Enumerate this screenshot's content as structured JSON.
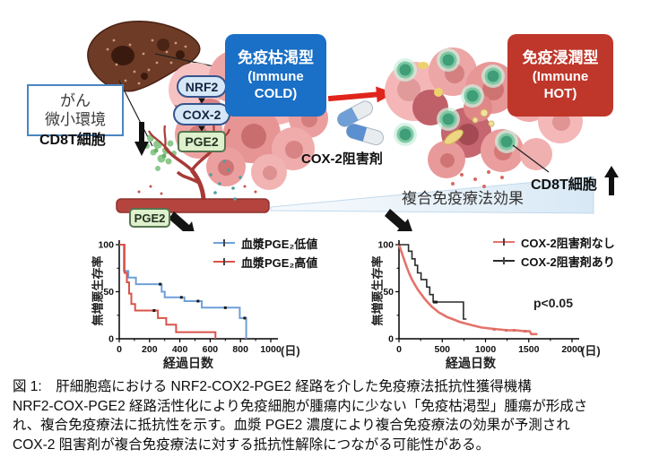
{
  "diagram": {
    "microenvironment_box": {
      "lines": [
        "がん",
        "微小環境"
      ]
    },
    "cd8_left_label": "CD8T細胞",
    "cd8_right_label": "CD8T細胞",
    "pathway_nodes": [
      {
        "label": "NRF2"
      },
      {
        "label": "COX-2"
      },
      {
        "label": "PGE2"
      }
    ],
    "vessel_pge2_label": "PGE2",
    "immune_cold_box": {
      "lines": [
        "免疫枯渇型",
        "(Immune",
        "COLD)"
      ],
      "color": "#1a6fc6"
    },
    "immune_hot_box": {
      "lines": [
        "免疫浸潤型",
        "(Immune",
        "HOT)"
      ],
      "color": "#bf372b"
    },
    "cox2_inhibitor_label": "COX-2阻害剤",
    "combo_therapy_label": "複合免疫療法効果"
  },
  "chart_data": [
    {
      "type": "line",
      "subtype": "kaplan-meier-step",
      "title": "",
      "xlabel": "経過日数",
      "x_unit": "(日)",
      "ylabel": "無増悪生存率",
      "xlim": [
        0,
        1000
      ],
      "ylim": [
        0,
        100
      ],
      "xticks": [
        0,
        200,
        400,
        600,
        800,
        1000
      ],
      "xminor": [
        100,
        300,
        500,
        700,
        900
      ],
      "yticks": [
        0,
        50,
        100
      ],
      "yminor": [
        25,
        75
      ],
      "legend_position": "top-right",
      "grid": false,
      "annotation": "",
      "series": [
        {
          "name": "血漿PGE₂低値",
          "color": "#6f9fd8",
          "width": 2,
          "marker_color": "#1a1a1a",
          "points": [
            [
              0,
              100
            ],
            [
              30,
              100
            ],
            [
              30,
              72
            ],
            [
              60,
              72
            ],
            [
              60,
              65
            ],
            [
              110,
              65
            ],
            [
              110,
              58
            ],
            [
              280,
              58
            ],
            [
              280,
              50
            ],
            [
              300,
              50
            ],
            [
              300,
              44
            ],
            [
              430,
              44
            ],
            [
              430,
              40
            ],
            [
              545,
              40
            ],
            [
              545,
              33
            ],
            [
              795,
              33
            ],
            [
              795,
              22
            ],
            [
              838,
              22
            ],
            [
              838,
              0
            ]
          ],
          "markers": [
            [
              270,
              58
            ],
            [
              410,
              44
            ],
            [
              520,
              40
            ],
            [
              700,
              33
            ],
            [
              828,
              22
            ]
          ]
        },
        {
          "name": "血漿PGE₂高値",
          "color": "#d9534a",
          "width": 2,
          "marker_color": "#1a1a1a",
          "points": [
            [
              0,
              100
            ],
            [
              35,
              100
            ],
            [
              35,
              70
            ],
            [
              50,
              70
            ],
            [
              50,
              60
            ],
            [
              65,
              60
            ],
            [
              65,
              48
            ],
            [
              80,
              48
            ],
            [
              80,
              37
            ],
            [
              105,
              37
            ],
            [
              105,
              30
            ],
            [
              255,
              30
            ],
            [
              255,
              22
            ],
            [
              310,
              22
            ],
            [
              310,
              15
            ],
            [
              375,
              15
            ],
            [
              375,
              7
            ],
            [
              635,
              7
            ],
            [
              635,
              0
            ]
          ],
          "markers": [
            [
              230,
              30
            ]
          ]
        }
      ]
    },
    {
      "type": "line",
      "subtype": "kaplan-meier-step",
      "title": "",
      "xlabel": "経過日数",
      "x_unit": "(日)",
      "ylabel": "無増悪生存率",
      "xlim": [
        0,
        2000
      ],
      "ylim": [
        0,
        100
      ],
      "xticks": [
        0,
        500,
        1000,
        1500,
        2000
      ],
      "xminor": [
        250,
        750,
        1250,
        1750
      ],
      "yticks": [
        0,
        50,
        100
      ],
      "yminor": [
        25,
        75
      ],
      "legend_position": "top-right",
      "grid": false,
      "annotation": "p<0.05",
      "series": [
        {
          "name": "COX-2阻害剤なし",
          "color": "#e4736b",
          "width": 2.6,
          "marker_color": "#d96b63",
          "points": [
            [
              0,
              100
            ],
            [
              30,
              92
            ],
            [
              60,
              84
            ],
            [
              90,
              76
            ],
            [
              120,
              69
            ],
            [
              150,
              63
            ],
            [
              180,
              58
            ],
            [
              220,
              52
            ],
            [
              260,
              47
            ],
            [
              300,
              42
            ],
            [
              340,
              38
            ],
            [
              380,
              34
            ],
            [
              420,
              31
            ],
            [
              460,
              28
            ],
            [
              500,
              26
            ],
            [
              560,
              23
            ],
            [
              620,
              21
            ],
            [
              700,
              18
            ],
            [
              780,
              16
            ],
            [
              860,
              14
            ],
            [
              950,
              12
            ],
            [
              1050,
              11
            ],
            [
              1150,
              10
            ],
            [
              1250,
              9
            ],
            [
              1350,
              9
            ],
            [
              1450,
              8
            ],
            [
              1510,
              8
            ],
            [
              1530,
              5
            ],
            [
              1600,
              5
            ]
          ],
          "markers": [
            [
              1100,
              10
            ],
            [
              1240,
              9
            ],
            [
              1330,
              9
            ],
            [
              1460,
              8
            ]
          ]
        },
        {
          "name": "COX-2阻害剤あり",
          "color": "#2a2a2a",
          "width": 1.6,
          "marker_color": "#1a1a1a",
          "points": [
            [
              0,
              100
            ],
            [
              110,
              100
            ],
            [
              110,
              93
            ],
            [
              150,
              93
            ],
            [
              150,
              85
            ],
            [
              185,
              85
            ],
            [
              185,
              78
            ],
            [
              215,
              78
            ],
            [
              215,
              70
            ],
            [
              255,
              70
            ],
            [
              255,
              63
            ],
            [
              320,
              63
            ],
            [
              320,
              55
            ],
            [
              355,
              55
            ],
            [
              355,
              47
            ],
            [
              395,
              47
            ],
            [
              395,
              39
            ],
            [
              745,
              39
            ],
            [
              745,
              21
            ],
            [
              780,
              21
            ]
          ],
          "markers": [
            [
              410,
              39
            ],
            [
              430,
              39
            ]
          ]
        }
      ]
    }
  ],
  "caption": {
    "lines": [
      "図 1:　肝細胞癌における NRF2-COX2-PGE2 経路を介した免疫療法抵抗性獲得機構",
      "NRF2-COX-PGE2 経路活性化により免疫細胞が腫瘍内に少ない「免疫枯渇型」腫瘍が形成さ",
      "れ、複合免疫療法に抵抗性を示す。血漿 PGE2 濃度により複合免疫療法の効果が予測され",
      "COX-2 阻害剤が複合免疫療法に対する抵抗性解除につながる可能性がある。"
    ]
  }
}
